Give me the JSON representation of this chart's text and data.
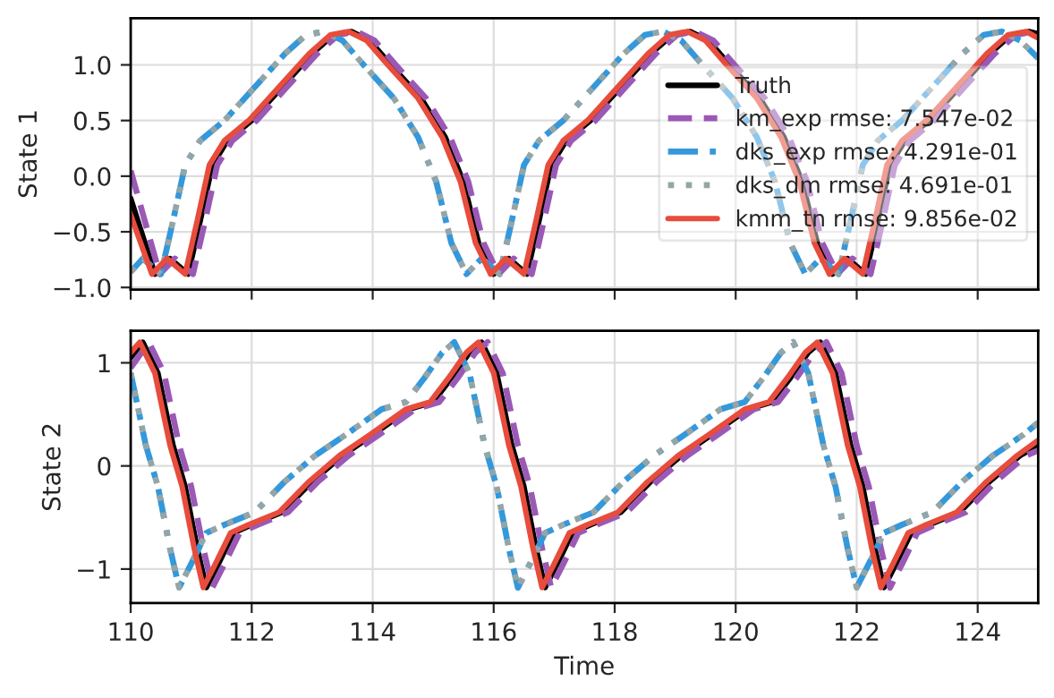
{
  "chart_data": [
    {
      "type": "line",
      "ylabel": "State 1",
      "xlim": [
        110,
        125
      ],
      "ylim": [
        -1.02,
        1.42
      ],
      "xticks": [
        110,
        112,
        114,
        116,
        118,
        120,
        122,
        124
      ],
      "yticks": [
        {
          "value": -1.0,
          "label": "−1.0"
        },
        {
          "value": -0.5,
          "label": "−0.5"
        },
        {
          "value": 0.0,
          "label": "0.0"
        },
        {
          "value": 0.5,
          "label": "0.5"
        },
        {
          "value": 1.0,
          "label": "1.0"
        }
      ],
      "grid": true,
      "legend": "right",
      "tick_labels": "y",
      "series": [
        {
          "name": "Truth",
          "color": "#000000",
          "line_style": "solid",
          "x": [
            110.0,
            110.4,
            110.65,
            110.95,
            111.15,
            111.35,
            111.6,
            112.0,
            112.5,
            113.0,
            113.35,
            113.65,
            113.95,
            114.3,
            114.8,
            115.2,
            115.5,
            115.75,
            116.0,
            116.25,
            116.55,
            116.75,
            116.95,
            117.2,
            117.6,
            118.1,
            118.6,
            118.95,
            119.25,
            119.55,
            119.9,
            120.4,
            120.8,
            121.1,
            121.35,
            121.6,
            121.85,
            122.15,
            122.35,
            122.55,
            122.8,
            123.2,
            123.7,
            124.2,
            124.55,
            124.85,
            125.0
          ],
          "values": [
            -0.2,
            -0.88,
            -0.74,
            -0.88,
            -0.4,
            0.1,
            0.32,
            0.5,
            0.8,
            1.1,
            1.27,
            1.3,
            1.22,
            1.0,
            0.7,
            0.35,
            -0.05,
            -0.6,
            -0.88,
            -0.74,
            -0.88,
            -0.4,
            0.1,
            0.32,
            0.5,
            0.8,
            1.1,
            1.27,
            1.3,
            1.22,
            1.0,
            0.7,
            0.35,
            -0.05,
            -0.6,
            -0.88,
            -0.74,
            -0.88,
            -0.4,
            0.1,
            0.32,
            0.5,
            0.8,
            1.1,
            1.27,
            1.3,
            1.28
          ]
        },
        {
          "name": "km_exp rmse: 7.547e-02",
          "color": "#9b59b6",
          "line_style": "dashed",
          "x": [
            110.0,
            110.48,
            110.73,
            111.03,
            111.23,
            111.43,
            111.68,
            112.08,
            112.58,
            113.08,
            113.43,
            113.73,
            114.03,
            114.38,
            114.88,
            115.28,
            115.58,
            115.83,
            116.08,
            116.33,
            116.63,
            116.83,
            117.03,
            117.28,
            117.68,
            118.18,
            118.68,
            119.03,
            119.33,
            119.63,
            119.98,
            120.48,
            120.88,
            121.18,
            121.43,
            121.68,
            121.93,
            122.23,
            122.43,
            122.63,
            122.88,
            123.28,
            123.78,
            124.28,
            124.63,
            124.93,
            125.0
          ],
          "values": [
            0.05,
            -0.88,
            -0.74,
            -0.88,
            -0.4,
            0.1,
            0.32,
            0.5,
            0.8,
            1.1,
            1.27,
            1.3,
            1.22,
            1.0,
            0.7,
            0.35,
            -0.05,
            -0.6,
            -0.88,
            -0.74,
            -0.88,
            -0.4,
            0.1,
            0.32,
            0.5,
            0.8,
            1.1,
            1.27,
            1.3,
            1.22,
            1.0,
            0.7,
            0.35,
            -0.05,
            -0.6,
            -0.88,
            -0.74,
            -0.88,
            -0.4,
            0.1,
            0.32,
            0.5,
            0.8,
            1.1,
            1.27,
            1.3,
            1.29
          ]
        },
        {
          "name": "dks_exp rmse: 4.291e-01",
          "color": "#3498db",
          "line_style": "dashdot",
          "x": [
            110.0,
            110.2,
            110.5,
            110.7,
            110.9,
            111.15,
            111.55,
            112.05,
            112.55,
            112.9,
            113.2,
            113.5,
            113.85,
            114.35,
            114.75,
            115.05,
            115.3,
            115.55,
            115.8,
            116.1,
            116.3,
            116.5,
            116.75,
            117.15,
            117.65,
            118.15,
            118.5,
            118.8,
            119.1,
            119.45,
            119.95,
            120.35,
            120.65,
            120.9,
            121.15,
            121.4,
            121.7,
            121.9,
            122.1,
            122.35,
            122.75,
            123.25,
            123.75,
            124.1,
            124.4,
            124.7,
            125.0
          ],
          "values": [
            -0.86,
            -0.74,
            -0.88,
            -0.4,
            0.1,
            0.32,
            0.5,
            0.8,
            1.1,
            1.27,
            1.3,
            1.22,
            1.0,
            0.7,
            0.35,
            -0.05,
            -0.6,
            -0.88,
            -0.74,
            -0.88,
            -0.4,
            0.1,
            0.32,
            0.5,
            0.8,
            1.1,
            1.27,
            1.3,
            1.22,
            1.0,
            0.7,
            0.35,
            -0.05,
            -0.6,
            -0.88,
            -0.74,
            -0.88,
            -0.4,
            0.1,
            0.32,
            0.5,
            0.8,
            1.1,
            1.27,
            1.3,
            1.22,
            1.06
          ]
        },
        {
          "name": "dks_dm rmse: 4.691e-01",
          "color": "#95a5a6",
          "line_style": "dotted",
          "x": [
            110.0,
            110.2,
            110.5,
            110.7,
            110.9,
            111.15,
            111.55,
            112.05,
            112.55,
            112.9,
            113.2,
            113.5,
            113.85,
            114.35,
            114.75,
            115.05,
            115.3,
            115.55,
            115.8,
            116.1,
            116.3,
            116.5,
            116.75,
            117.15,
            117.65,
            118.15,
            118.5,
            118.8,
            119.1,
            119.45,
            119.95,
            120.35,
            120.65,
            120.9,
            121.15,
            121.4,
            121.7,
            121.9,
            122.1,
            122.35,
            122.75,
            123.25,
            123.75,
            124.1,
            124.4,
            124.7,
            125.0
          ],
          "values": [
            -0.86,
            -0.74,
            -0.88,
            -0.4,
            0.1,
            0.32,
            0.5,
            0.8,
            1.1,
            1.27,
            1.3,
            1.22,
            1.0,
            0.7,
            0.35,
            -0.05,
            -0.6,
            -0.88,
            -0.74,
            -0.88,
            -0.4,
            0.1,
            0.32,
            0.5,
            0.8,
            1.1,
            1.27,
            1.3,
            1.22,
            1.0,
            0.7,
            0.35,
            -0.05,
            -0.6,
            -0.88,
            -0.74,
            -0.88,
            -0.4,
            0.1,
            0.32,
            0.5,
            0.8,
            1.1,
            1.27,
            1.3,
            1.22,
            1.06
          ]
        },
        {
          "name": "kmm_tn rmse: 9.856e-02",
          "color": "#e74c3c",
          "line_style": "solid",
          "x": [
            110.0,
            110.35,
            110.6,
            110.9,
            111.1,
            111.3,
            111.55,
            111.95,
            112.45,
            112.95,
            113.3,
            113.6,
            113.9,
            114.25,
            114.75,
            115.15,
            115.45,
            115.7,
            115.95,
            116.2,
            116.5,
            116.7,
            116.9,
            117.15,
            117.55,
            118.05,
            118.55,
            118.9,
            119.2,
            119.5,
            119.85,
            120.35,
            120.75,
            121.05,
            121.3,
            121.55,
            121.8,
            122.1,
            122.3,
            122.5,
            122.75,
            123.15,
            123.65,
            124.15,
            124.5,
            124.8,
            125.0
          ],
          "values": [
            -0.35,
            -0.88,
            -0.74,
            -0.88,
            -0.4,
            0.1,
            0.32,
            0.5,
            0.8,
            1.1,
            1.27,
            1.3,
            1.22,
            1.0,
            0.7,
            0.35,
            -0.05,
            -0.6,
            -0.88,
            -0.74,
            -0.88,
            -0.4,
            0.1,
            0.32,
            0.5,
            0.8,
            1.1,
            1.27,
            1.3,
            1.22,
            1.0,
            0.7,
            0.35,
            -0.05,
            -0.6,
            -0.88,
            -0.74,
            -0.88,
            -0.4,
            0.1,
            0.32,
            0.5,
            0.8,
            1.1,
            1.27,
            1.3,
            1.24
          ]
        }
      ]
    },
    {
      "type": "line",
      "xlabel": "Time",
      "ylabel": "State 2",
      "xlim": [
        110,
        125
      ],
      "ylim": [
        -1.33,
        1.31
      ],
      "xticks": [
        110,
        112,
        114,
        116,
        118,
        120,
        122,
        124
      ],
      "yticks": [
        {
          "value": -1,
          "label": "−1"
        },
        0,
        1
      ],
      "grid": true,
      "series": [
        {
          "color": "#000000",
          "line_style": "solid",
          "x": [
            110.0,
            110.2,
            110.45,
            110.7,
            110.9,
            111.1,
            111.25,
            111.45,
            111.7,
            112.0,
            112.5,
            113.0,
            113.5,
            114.0,
            114.6,
            115.0,
            115.3,
            115.6,
            115.8,
            116.05,
            116.3,
            116.5,
            116.7,
            116.85,
            117.05,
            117.3,
            117.6,
            118.1,
            118.6,
            119.1,
            119.6,
            120.2,
            120.6,
            120.9,
            121.2,
            121.4,
            121.65,
            121.9,
            122.1,
            122.3,
            122.45,
            122.65,
            122.9,
            123.2,
            123.7,
            124.2,
            124.7,
            125.0
          ],
          "values": [
            1.05,
            1.2,
            0.9,
            0.2,
            -0.2,
            -0.8,
            -1.18,
            -0.95,
            -0.65,
            -0.57,
            -0.45,
            -0.15,
            0.1,
            0.3,
            0.55,
            0.62,
            0.85,
            1.1,
            1.2,
            0.9,
            0.2,
            -0.2,
            -0.8,
            -1.18,
            -0.95,
            -0.65,
            -0.57,
            -0.45,
            -0.15,
            0.1,
            0.3,
            0.55,
            0.62,
            0.85,
            1.1,
            1.2,
            0.9,
            0.2,
            -0.2,
            -0.8,
            -1.18,
            -0.95,
            -0.65,
            -0.57,
            -0.45,
            -0.15,
            0.1,
            0.2
          ]
        },
        {
          "color": "#9b59b6",
          "line_style": "dashed",
          "x": [
            110.0,
            110.3,
            110.55,
            110.8,
            111.0,
            111.2,
            111.35,
            111.55,
            111.8,
            112.1,
            112.6,
            113.1,
            113.6,
            114.1,
            114.7,
            115.1,
            115.4,
            115.7,
            115.9,
            116.15,
            116.4,
            116.6,
            116.8,
            116.95,
            117.15,
            117.4,
            117.7,
            118.2,
            118.7,
            119.2,
            119.7,
            120.3,
            120.7,
            121.0,
            121.3,
            121.5,
            121.75,
            122.0,
            122.2,
            122.4,
            122.55,
            122.75,
            123.0,
            123.3,
            123.8,
            124.3,
            124.8,
            125.0
          ],
          "values": [
            0.95,
            1.2,
            0.9,
            0.2,
            -0.2,
            -0.8,
            -1.18,
            -0.95,
            -0.65,
            -0.57,
            -0.45,
            -0.15,
            0.1,
            0.3,
            0.55,
            0.62,
            0.85,
            1.1,
            1.2,
            0.9,
            0.2,
            -0.2,
            -0.8,
            -1.18,
            -0.95,
            -0.65,
            -0.57,
            -0.45,
            -0.15,
            0.1,
            0.3,
            0.55,
            0.62,
            0.85,
            1.1,
            1.2,
            0.9,
            0.2,
            -0.2,
            -0.8,
            -1.18,
            -0.95,
            -0.65,
            -0.57,
            -0.45,
            -0.15,
            0.1,
            0.15
          ]
        },
        {
          "color": "#3498db",
          "line_style": "dashdot",
          "x": [
            110.0,
            110.25,
            110.45,
            110.65,
            110.8,
            111.0,
            111.25,
            111.55,
            112.05,
            112.55,
            113.05,
            113.55,
            114.15,
            114.55,
            114.85,
            115.15,
            115.35,
            115.6,
            115.85,
            116.05,
            116.25,
            116.4,
            116.6,
            116.85,
            117.15,
            117.65,
            118.15,
            118.65,
            119.15,
            119.75,
            120.15,
            120.45,
            120.75,
            120.95,
            121.2,
            121.45,
            121.65,
            121.85,
            122.0,
            122.2,
            122.45,
            122.75,
            123.25,
            123.75,
            124.25,
            124.75,
            125.0
          ],
          "values": [
            0.9,
            0.2,
            -0.2,
            -0.8,
            -1.18,
            -0.95,
            -0.65,
            -0.57,
            -0.45,
            -0.15,
            0.1,
            0.3,
            0.55,
            0.62,
            0.85,
            1.1,
            1.2,
            0.9,
            0.2,
            -0.2,
            -0.8,
            -1.18,
            -0.95,
            -0.65,
            -0.57,
            -0.45,
            -0.15,
            0.1,
            0.3,
            0.55,
            0.62,
            0.85,
            1.1,
            1.2,
            0.9,
            0.2,
            -0.2,
            -0.8,
            -1.18,
            -0.95,
            -0.65,
            -0.57,
            -0.45,
            -0.15,
            0.1,
            0.3,
            0.42
          ]
        },
        {
          "color": "#95a5a6",
          "line_style": "dotted",
          "x": [
            110.0,
            110.25,
            110.45,
            110.65,
            110.8,
            111.0,
            111.25,
            111.55,
            112.05,
            112.55,
            113.05,
            113.55,
            114.15,
            114.55,
            114.85,
            115.15,
            115.35,
            115.6,
            115.85,
            116.05,
            116.25,
            116.4,
            116.6,
            116.85,
            117.15,
            117.65,
            118.15,
            118.65,
            119.15,
            119.75,
            120.15,
            120.45,
            120.75,
            120.95,
            121.2,
            121.45,
            121.65,
            121.85,
            122.0,
            122.2,
            122.45,
            122.75,
            123.25,
            123.75,
            124.25,
            124.75,
            125.0
          ],
          "values": [
            0.9,
            0.2,
            -0.2,
            -0.8,
            -1.18,
            -0.95,
            -0.65,
            -0.57,
            -0.45,
            -0.15,
            0.1,
            0.3,
            0.55,
            0.62,
            0.85,
            1.1,
            1.2,
            0.9,
            0.2,
            -0.2,
            -0.8,
            -1.18,
            -0.95,
            -0.65,
            -0.57,
            -0.45,
            -0.15,
            0.1,
            0.3,
            0.55,
            0.62,
            0.85,
            1.1,
            1.2,
            0.9,
            0.2,
            -0.2,
            -0.8,
            -1.18,
            -0.95,
            -0.65,
            -0.57,
            -0.45,
            -0.15,
            0.1,
            0.3,
            0.42
          ]
        },
        {
          "color": "#e74c3c",
          "line_style": "solid",
          "x": [
            110.0,
            110.15,
            110.4,
            110.65,
            110.85,
            111.05,
            111.2,
            111.4,
            111.65,
            111.95,
            112.45,
            112.95,
            113.45,
            113.95,
            114.55,
            114.95,
            115.25,
            115.55,
            115.75,
            116.0,
            116.25,
            116.45,
            116.65,
            116.8,
            117.0,
            117.25,
            117.55,
            118.05,
            118.55,
            119.05,
            119.55,
            120.15,
            120.55,
            120.85,
            121.15,
            121.35,
            121.6,
            121.85,
            122.05,
            122.25,
            122.4,
            122.6,
            122.85,
            123.15,
            123.65,
            124.15,
            124.65,
            125.0
          ],
          "values": [
            1.1,
            1.2,
            0.9,
            0.2,
            -0.2,
            -0.8,
            -1.18,
            -0.95,
            -0.65,
            -0.57,
            -0.45,
            -0.15,
            0.1,
            0.3,
            0.55,
            0.62,
            0.85,
            1.1,
            1.2,
            0.9,
            0.2,
            -0.2,
            -0.8,
            -1.18,
            -0.95,
            -0.65,
            -0.57,
            -0.45,
            -0.15,
            0.1,
            0.3,
            0.55,
            0.62,
            0.85,
            1.1,
            1.2,
            0.9,
            0.2,
            -0.2,
            -0.8,
            -1.18,
            -0.95,
            -0.65,
            -0.57,
            -0.45,
            -0.15,
            0.1,
            0.25
          ]
        }
      ]
    }
  ]
}
